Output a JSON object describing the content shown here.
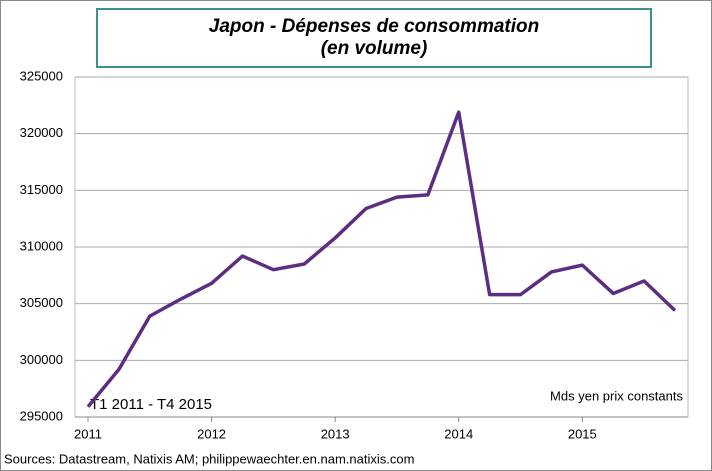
{
  "chart_data": {
    "type": "line",
    "title": "Japon - Dépenses de consommation",
    "subtitle": "(en volume)",
    "categories": [
      "2011",
      null,
      null,
      null,
      "2012",
      null,
      null,
      null,
      "2013",
      null,
      null,
      null,
      "2014",
      null,
      null,
      null,
      "2015",
      null,
      null,
      null
    ],
    "series": [
      {
        "name": "Dépenses de consommation",
        "color": "#5c2d82",
        "values": [
          295900,
          299200,
          303900,
          305400,
          306800,
          309200,
          308000,
          308500,
          310800,
          313400,
          314400,
          314600,
          321900,
          305800,
          305800,
          307800,
          308400,
          305900,
          307000,
          304400
        ]
      }
    ],
    "ylim": [
      295000,
      325000
    ],
    "yticks": [
      295000,
      300000,
      305000,
      310000,
      315000,
      320000,
      325000
    ],
    "grid": true,
    "annotations": [
      "T1 2011 - T4 2015",
      "Mds yen prix constants"
    ],
    "source": "Sources: Datastream,  Natixis AM; philippewaechter.en.nam.natixis.com"
  }
}
